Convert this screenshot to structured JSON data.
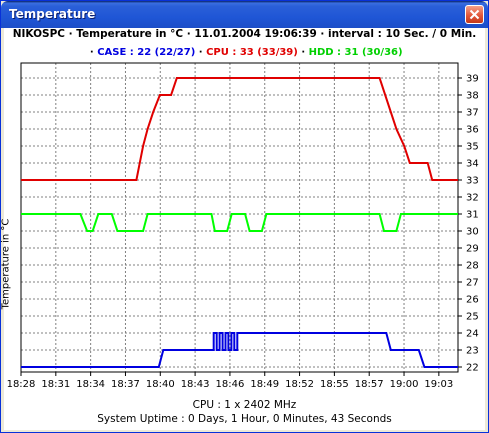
{
  "window": {
    "title": "Temperature"
  },
  "header": {
    "line": "NIKOSPC · Temperature in °C · 11.01.2004 19:06:39 · interval : 10 Sec. / 0 Min.",
    "legend": {
      "case": "CASE : 22 (22/27)",
      "cpu": "CPU : 33 (33/39)",
      "hdd": "HDD : 31 (30/36)",
      "sep": " · "
    }
  },
  "footer": {
    "cpu_info": "CPU : 1 x 2402 MHz",
    "uptime": "System Uptime :  0 Days, 1 Hour, 0 Minutes, 43 Seconds"
  },
  "colors": {
    "case": "#0000e0",
    "cpu": "#e00000",
    "hdd": "#00ff00",
    "grid": "#808080"
  },
  "chart_data": {
    "type": "line",
    "ylabel": "Temperature in °C",
    "ylim": [
      22,
      39
    ],
    "y_axis_side": "right",
    "xlim": [
      0,
      39
    ],
    "x_ticks": [
      "18:28",
      "18:31",
      "18:34",
      "18:37",
      "18:40",
      "18:43",
      "18:46",
      "18:49",
      "18:52",
      "18:55",
      "18:57",
      "19:00",
      "19:03"
    ],
    "grid": true,
    "series": [
      {
        "name": "CPU",
        "color": "#e00000",
        "x": [
          0,
          10.3,
          10.9,
          11.3,
          11.8,
          12.4,
          13.4,
          13.9,
          16.5,
          16.8,
          32.0,
          32.5,
          33.0,
          33.5,
          34.2,
          34.7,
          36.3,
          36.7,
          39
        ],
        "y": [
          33,
          33,
          35,
          36,
          37,
          38,
          38,
          39,
          39,
          39,
          39,
          38,
          37,
          36,
          35,
          34,
          34,
          33,
          33
        ]
      },
      {
        "name": "HDD",
        "color": "#00ff00",
        "x": [
          0,
          5.3,
          5.9,
          6.4,
          6.9,
          8.1,
          8.6,
          10.9,
          11.3,
          11.8,
          17.0,
          17.3,
          18.4,
          18.8,
          20.0,
          20.4,
          21.5,
          21.9,
          23.1,
          23.4,
          32.0,
          32.4,
          33.5,
          33.9,
          39
        ],
        "y": [
          31,
          31,
          30,
          30,
          31,
          31,
          30,
          30,
          31,
          31,
          31,
          30,
          30,
          31,
          31,
          30,
          30,
          31,
          31,
          31,
          31,
          30,
          30,
          31,
          31
        ],
        "lows": [
          [
            5.3,
            6.9
          ],
          [
            8.1,
            10.9
          ],
          [
            17.0,
            18.8
          ],
          [
            20.0,
            21.9
          ],
          [
            32.0,
            33.9
          ]
        ]
      },
      {
        "name": "CASE",
        "color": "#0000e0",
        "x": [
          0,
          12.3,
          12.7,
          17.2,
          17.5,
          19.0,
          19.4,
          32.6,
          33.0,
          35.5,
          36.0,
          39
        ],
        "y": [
          22,
          22,
          23,
          23,
          24,
          24,
          24,
          24,
          23,
          23,
          22,
          22
        ],
        "oscillation": {
          "x_from": 17.2,
          "x_to": 19.3,
          "low": 23,
          "high": 24,
          "count": 4
        }
      }
    ]
  }
}
